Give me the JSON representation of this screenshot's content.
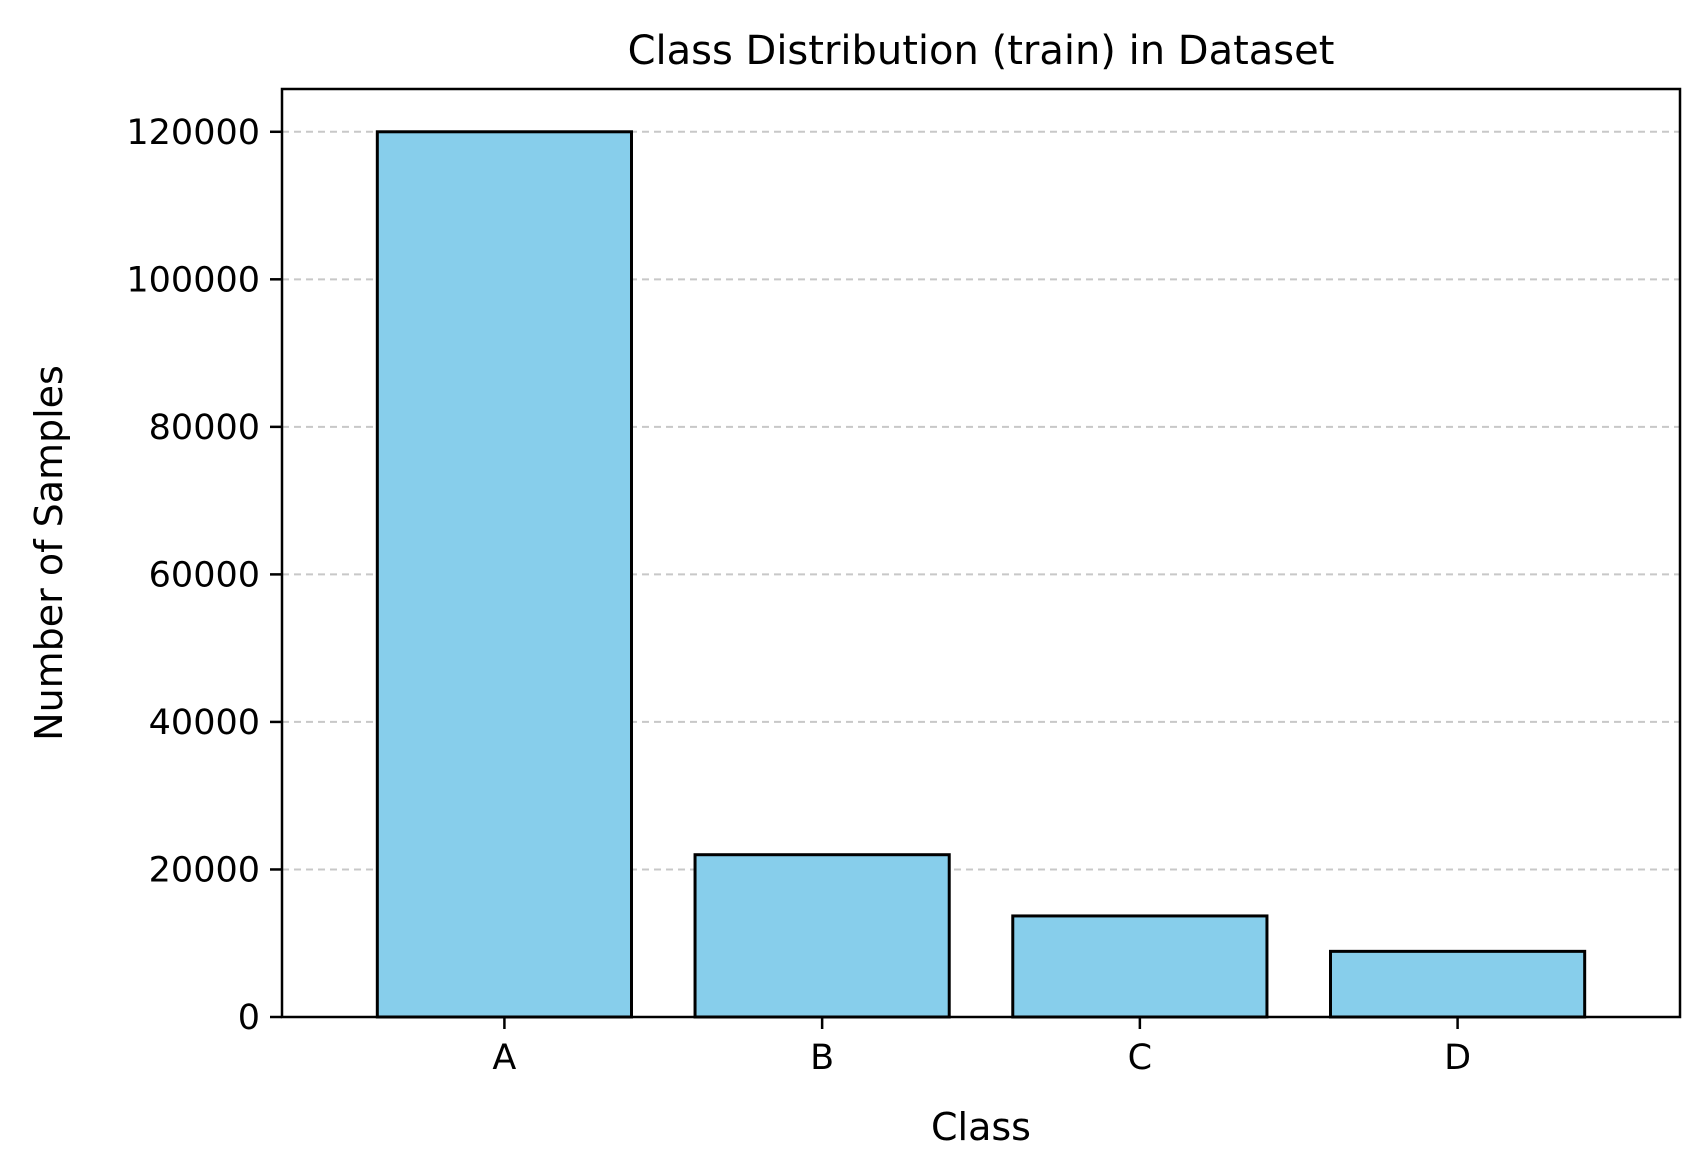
{
  "chart_data": {
    "type": "bar",
    "title": "Class Distribution (train) in Dataset",
    "xlabel": "Class",
    "ylabel": "Number of Samples",
    "categories": [
      "A",
      "B",
      "C",
      "D"
    ],
    "values": [
      120000,
      22000,
      13700,
      8900
    ],
    "ylim": [
      0,
      125800
    ],
    "yticks": [
      0,
      20000,
      40000,
      60000,
      80000,
      100000,
      120000
    ],
    "ytick_labels": [
      "0",
      "20000",
      "40000",
      "60000",
      "80000",
      "100000",
      "120000"
    ],
    "grid": {
      "axis": "y",
      "style": "dashed",
      "color": "#c8c8c8"
    },
    "bar_color": "#87ceeb",
    "bar_edge_color": "#000000"
  }
}
